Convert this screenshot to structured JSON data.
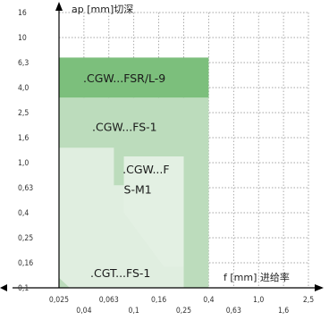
{
  "chart_data": {
    "type": "region",
    "x_axis": {
      "label": "f [mm] 进给率",
      "tick_labels_top_row": [
        "0,025",
        "0,063",
        "0,16",
        "0,4",
        "1,0",
        "2,5"
      ],
      "tick_labels_bottom_row": [
        "0,04",
        "0,1",
        "0,25",
        "0,63",
        "1,6"
      ],
      "range": [
        "0,025",
        "2,5"
      ]
    },
    "y_axis": {
      "label": "ap [mm]切深",
      "tick_labels": [
        "16",
        "10",
        "6,3",
        "4,0",
        "2,5",
        "1,6",
        "1,0",
        "0,63",
        "0,4",
        "0,25",
        "0,16",
        "0,1"
      ],
      "range": [
        "0,1",
        "16"
      ]
    },
    "grid": "dotted",
    "regions": [
      {
        "label": ".CGW...FSR/L-9",
        "color": "#7cbf7c"
      },
      {
        "label": ".CGW...FS-1",
        "color": "#bcdcbc"
      },
      {
        "label": ".CGW...F\nS-M1",
        "label_lines": [
          ".CGW...F",
          "S-M1"
        ],
        "color": "#e3f0e3"
      },
      {
        "label": ".CGT...FS-1",
        "color": "#e0eee0"
      }
    ]
  }
}
